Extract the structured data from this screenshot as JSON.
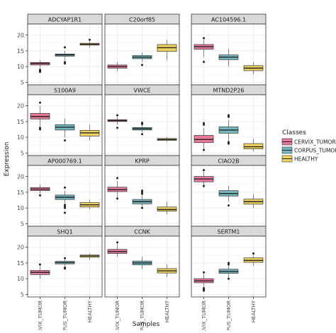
{
  "chart_data": {
    "type": "boxplot",
    "xlabel": "Samples",
    "ylabel": "Expression",
    "categories": [
      "CERVIX_TUMOR",
      "CORPUS_TUMOR",
      "HEALTHY"
    ],
    "y_ticks": [
      5,
      10,
      15,
      20
    ],
    "ylim": [
      4.2,
      23.5
    ],
    "legend": {
      "title": "Classes",
      "position": "right",
      "entries": [
        {
          "label": "CERVIX_TUMOR",
          "color": "#e8799b"
        },
        {
          "label": "CORPUS_TUMOR",
          "color": "#75b7be"
        },
        {
          "label": "HEALTHY",
          "color": "#f0d25e"
        }
      ]
    },
    "colors": {
      "panel_bg": "#ffffff",
      "grid": "#ebebeb",
      "strip_bg": "#d9d9d9",
      "border": "#333333"
    },
    "panels": [
      {
        "gene": "ADCYAP1R1",
        "boxes": [
          {
            "min": 9.5,
            "q1": 10.5,
            "median": 11.0,
            "q3": 11.3,
            "max": 12.0,
            "outliers": [
              9.0,
              8.6,
              8.3
            ]
          },
          {
            "min": 12.0,
            "q1": 13.3,
            "median": 13.7,
            "q3": 14.0,
            "max": 15.0,
            "outliers": [
              16.1,
              11.4,
              11.0
            ]
          },
          {
            "min": 16.0,
            "q1": 16.8,
            "median": 17.1,
            "q3": 17.4,
            "max": 18.0,
            "outliers": [
              18.5
            ]
          }
        ]
      },
      {
        "gene": "C20orf85",
        "boxes": [
          {
            "min": 8.5,
            "q1": 9.5,
            "median": 10.0,
            "q3": 10.5,
            "max": 11.5,
            "outliers": []
          },
          {
            "min": 11.5,
            "q1": 12.5,
            "median": 13.0,
            "q3": 13.5,
            "max": 14.5,
            "outliers": [
              10.5
            ]
          },
          {
            "min": 12.0,
            "q1": 14.8,
            "median": 16.0,
            "q3": 17.0,
            "max": 18.5,
            "outliers": []
          }
        ]
      },
      {
        "gene": "AC104596.1",
        "boxes": [
          {
            "min": 13.0,
            "q1": 15.5,
            "median": 16.3,
            "q3": 17.0,
            "max": 18.5,
            "outliers": [
              11.5,
              19.0
            ]
          },
          {
            "min": 10.0,
            "q1": 12.2,
            "median": 13.0,
            "q3": 13.7,
            "max": 15.5,
            "outliers": []
          },
          {
            "min": 7.5,
            "q1": 8.7,
            "median": 9.5,
            "q3": 10.3,
            "max": 11.5,
            "outliers": []
          }
        ]
      },
      {
        "gene": "S100A9",
        "boxes": [
          {
            "min": 13.5,
            "q1": 15.8,
            "median": 16.6,
            "q3": 17.6,
            "max": 20.0,
            "outliers": [
              21.0,
              13.0,
              12.5
            ]
          },
          {
            "min": 10.0,
            "q1": 12.3,
            "median": 13.2,
            "q3": 14.0,
            "max": 16.0,
            "outliers": [
              9.0
            ]
          },
          {
            "min": 9.0,
            "q1": 10.4,
            "median": 11.4,
            "q3": 12.2,
            "max": 14.0,
            "outliers": []
          }
        ]
      },
      {
        "gene": "VWCE",
        "boxes": [
          {
            "min": 14.0,
            "q1": 15.0,
            "median": 15.3,
            "q3": 15.6,
            "max": 16.5,
            "outliers": [
              17.0,
              13.0
            ]
          },
          {
            "min": 11.5,
            "q1": 12.3,
            "median": 12.7,
            "q3": 13.1,
            "max": 14.0,
            "outliers": [
              14.6,
              14.2,
              11.0
            ]
          },
          {
            "min": 8.5,
            "q1": 9.0,
            "median": 9.3,
            "q3": 9.6,
            "max": 10.0,
            "outliers": []
          }
        ]
      },
      {
        "gene": "MTND2P26",
        "boxes": [
          {
            "min": 6.5,
            "q1": 8.3,
            "median": 9.3,
            "q3": 10.6,
            "max": 13.0,
            "outliers": [
              14.5,
              14.0,
              6.0
            ]
          },
          {
            "min": 9.0,
            "q1": 11.3,
            "median": 12.3,
            "q3": 13.3,
            "max": 15.5,
            "outliers": [
              17.0,
              16.5,
              8.5,
              8.0
            ]
          },
          {
            "min": 5.5,
            "q1": 6.3,
            "median": 7.0,
            "q3": 8.0,
            "max": 9.5,
            "outliers": []
          }
        ]
      },
      {
        "gene": "AP000769.1",
        "boxes": [
          {
            "min": 14.5,
            "q1": 15.5,
            "median": 16.0,
            "q3": 16.5,
            "max": 17.5,
            "outliers": [
              14.0
            ]
          },
          {
            "min": 11.5,
            "q1": 12.7,
            "median": 13.4,
            "q3": 14.1,
            "max": 15.5,
            "outliers": [
              16.5,
              11.0,
              10.5,
              10.0,
              8.5
            ]
          },
          {
            "min": 9.5,
            "q1": 10.3,
            "median": 11.0,
            "q3": 11.7,
            "max": 12.5,
            "outliers": []
          }
        ]
      },
      {
        "gene": "KPRP",
        "boxes": [
          {
            "min": 13.5,
            "q1": 15.2,
            "median": 15.8,
            "q3": 16.6,
            "max": 18.5,
            "outliers": [
              19.5,
              13.0
            ]
          },
          {
            "min": 10.0,
            "q1": 11.3,
            "median": 12.0,
            "q3": 12.7,
            "max": 14.0,
            "outliers": [
              15.5,
              15.0,
              14.5,
              10.0
            ]
          },
          {
            "min": 8.0,
            "q1": 9.0,
            "median": 9.5,
            "q3": 10.3,
            "max": 12.0,
            "outliers": []
          }
        ]
      },
      {
        "gene": "CIAO2B",
        "boxes": [
          {
            "min": 16.5,
            "q1": 18.3,
            "median": 19.2,
            "q3": 20.0,
            "max": 21.5,
            "outliers": [
              22.0,
              17.0
            ]
          },
          {
            "min": 12.0,
            "q1": 13.8,
            "median": 14.6,
            "q3": 15.5,
            "max": 17.0,
            "outliers": [
              10.8
            ]
          },
          {
            "min": 10.0,
            "q1": 11.2,
            "median": 12.0,
            "q3": 12.8,
            "max": 14.5,
            "outliers": []
          }
        ]
      },
      {
        "gene": "SHQ1",
        "boxes": [
          {
            "min": 10.0,
            "q1": 11.3,
            "median": 12.0,
            "q3": 12.6,
            "max": 14.0,
            "outliers": [
              14.5
            ]
          },
          {
            "min": 14.0,
            "q1": 14.7,
            "median": 15.1,
            "q3": 15.5,
            "max": 16.0,
            "outliers": [
              16.5,
              13.5,
              13.2
            ]
          },
          {
            "min": 16.0,
            "q1": 16.8,
            "median": 17.2,
            "q3": 17.5,
            "max": 18.0,
            "outliers": []
          }
        ]
      },
      {
        "gene": "CCNK",
        "boxes": [
          {
            "min": 17.0,
            "q1": 18.0,
            "median": 18.6,
            "q3": 19.3,
            "max": 21.0,
            "outliers": [
              21.5
            ]
          },
          {
            "min": 13.0,
            "q1": 14.4,
            "median": 15.0,
            "q3": 15.6,
            "max": 17.0,
            "outliers": []
          },
          {
            "min": 10.5,
            "q1": 11.8,
            "median": 12.5,
            "q3": 13.2,
            "max": 14.5,
            "outliers": []
          }
        ]
      },
      {
        "gene": "SERTM1",
        "boxes": [
          {
            "min": 7.5,
            "q1": 8.7,
            "median": 9.3,
            "q3": 10.0,
            "max": 11.5,
            "outliers": [
              12.0,
              7.0,
              6.5,
              6.2
            ]
          },
          {
            "min": 10.5,
            "q1": 11.7,
            "median": 12.3,
            "q3": 13.0,
            "max": 14.0,
            "outliers": [
              15.0,
              14.5,
              10.0
            ]
          },
          {
            "min": 14.0,
            "q1": 15.2,
            "median": 15.8,
            "q3": 16.6,
            "max": 17.5,
            "outliers": [
              18.0
            ]
          }
        ]
      }
    ]
  }
}
